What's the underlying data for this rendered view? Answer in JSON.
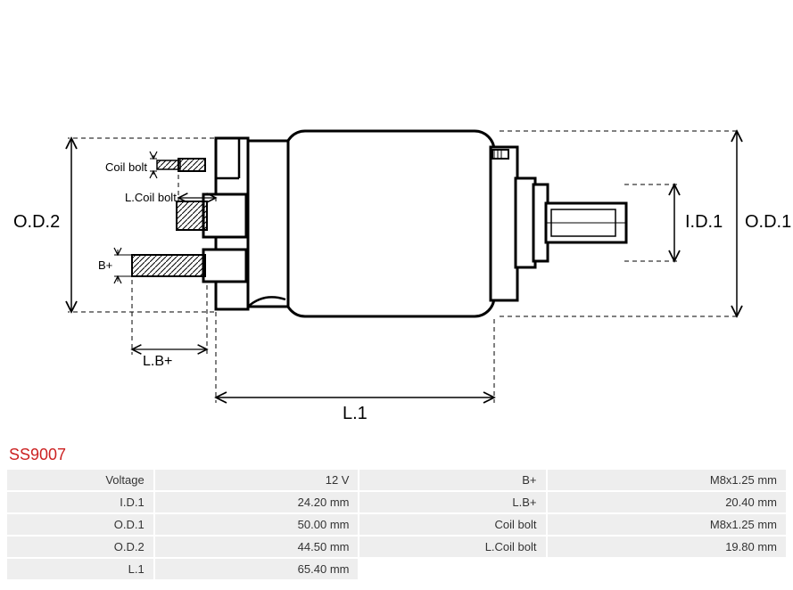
{
  "part_number": "SS9007",
  "diagram": {
    "type": "engineering-drawing",
    "background_color": "#ffffff",
    "stroke_color": "#000000",
    "dash_color": "#000000",
    "dash_pattern": "5,4",
    "label_fontsize": 18,
    "small_label_fontsize": 13,
    "labels": {
      "od2": "O.D.2",
      "od1": "O.D.1",
      "id1": "I.D.1",
      "l1": "L.1",
      "lb_plus": "L.B+",
      "b_plus": "B+",
      "coil_bolt": "Coil bolt",
      "l_coil_bolt": "L.Coil bolt"
    }
  },
  "specs": {
    "rows": [
      {
        "label1": "Voltage",
        "value1": "12 V",
        "label2": "B+",
        "value2": "M8x1.25 mm"
      },
      {
        "label1": "I.D.1",
        "value1": "24.20 mm",
        "label2": "L.B+",
        "value2": "20.40 mm"
      },
      {
        "label1": "O.D.1",
        "value1": "50.00 mm",
        "label2": "Coil bolt",
        "value2": "M8x1.25 mm"
      },
      {
        "label1": "O.D.2",
        "value1": "44.50 mm",
        "label2": "L.Coil bolt",
        "value2": "19.80 mm"
      },
      {
        "label1": "L.1",
        "value1": "65.40 mm",
        "label2": "",
        "value2": ""
      }
    ],
    "row_bg": "#eeeeee",
    "text_color": "#333333",
    "fontsize": 13
  },
  "colors": {
    "part_number": "#cc2222",
    "stroke": "#000000"
  }
}
